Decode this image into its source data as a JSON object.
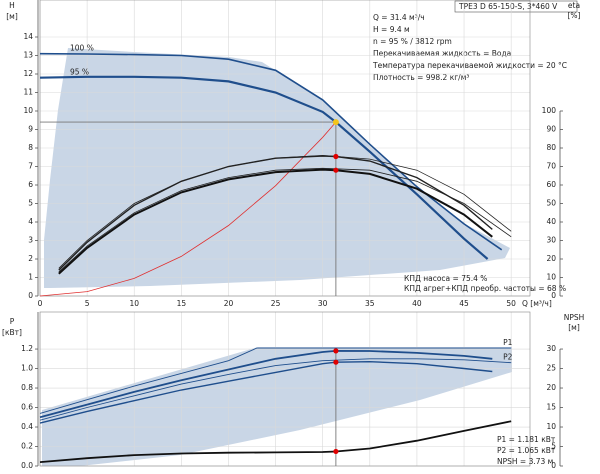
{
  "header": {
    "model": "TPE3 D 65-150-S, 3*460 V"
  },
  "info": [
    "Q = 31.4 м³/ч",
    "H = 9.4 м",
    "n = 95 % / 3812 rpm",
    "Перекачиваемая жидкость = Вода",
    "Температура перекачиваемой жидкости = 20 °C",
    "Плотность = 998.2 кг/м³"
  ],
  "chart_data": [
    {
      "type": "line",
      "x_label": "Q [м³/ч]",
      "y_label": "H",
      "y_unit": "[м]",
      "y2_label": "eta",
      "y2_unit": "[%]",
      "xlim": [
        0,
        52
      ],
      "xticks": [
        0,
        5,
        10,
        15,
        20,
        25,
        30,
        35,
        40,
        45,
        50
      ],
      "ylim": [
        0,
        16
      ],
      "yticks": [
        0,
        1,
        2,
        3,
        4,
        5,
        6,
        7,
        8,
        9,
        10,
        11,
        12,
        13,
        14
      ],
      "y2lim": [
        0,
        160
      ],
      "y2ticks": [
        0,
        10,
        20,
        30,
        40,
        50,
        60,
        70,
        80,
        90,
        100
      ],
      "grid": true,
      "operating_point": {
        "x": 31.4,
        "y": 9.4,
        "color": "#f5c518"
      },
      "notes": [
        "КПД насоса = 75.4 %",
        "КПД агрег+КПД преобр. частоты = 68 %"
      ],
      "series": [
        {
          "name": "100 %",
          "label_at": "start",
          "color": "#1f4e8c",
          "width": 1.6,
          "x": [
            0,
            5,
            10,
            15,
            20,
            25,
            30,
            35,
            40,
            45,
            49
          ],
          "values": [
            13.1,
            13.08,
            13.05,
            13.0,
            12.8,
            12.2,
            10.6,
            8.2,
            5.9,
            3.9,
            2.5
          ]
        },
        {
          "name": "95 %",
          "label_at": "start",
          "color": "#1f4e8c",
          "width": 2.2,
          "x": [
            0,
            5,
            10,
            15,
            20,
            25,
            30,
            31.4,
            35,
            40,
            45,
            47.5
          ],
          "values": [
            11.8,
            11.85,
            11.85,
            11.8,
            11.6,
            11.0,
            9.95,
            9.4,
            7.8,
            5.5,
            3.1,
            2.0
          ]
        },
        {
          "color": "#e03030",
          "width": 0.8,
          "x": [
            0,
            5,
            10,
            15,
            20,
            25,
            30,
            31.4
          ],
          "values": [
            0,
            0.24,
            0.95,
            2.14,
            3.81,
            5.96,
            8.58,
            9.4
          ]
        },
        {
          "color": "#222222",
          "width": 0.8,
          "axis": "y2",
          "x": [
            2,
            5,
            10,
            15,
            20,
            25,
            30,
            35,
            40,
            45,
            50
          ],
          "values": [
            15,
            30,
            50,
            62,
            70,
            74.5,
            76,
            74,
            68,
            55,
            35
          ]
        },
        {
          "color": "#222222",
          "width": 1.4,
          "axis": "y2",
          "marker_color": "#e00000",
          "x": [
            2,
            5,
            10,
            15,
            20,
            25,
            30,
            31.4,
            35,
            40,
            45,
            48
          ],
          "values": [
            14,
            29,
            49,
            62,
            70,
            74.5,
            75.7,
            75.4,
            73,
            64,
            49,
            36
          ]
        },
        {
          "color": "#222222",
          "width": 0.8,
          "axis": "y2",
          "x": [
            2,
            5,
            10,
            15,
            20,
            25,
            30,
            35,
            40,
            45,
            50
          ],
          "values": [
            13,
            27,
            45,
            57,
            64,
            68,
            69,
            68,
            62,
            50,
            32
          ]
        },
        {
          "color": "#111111",
          "width": 2,
          "axis": "y2",
          "marker_color": "#e00000",
          "x": [
            2,
            5,
            10,
            15,
            20,
            25,
            30,
            31.4,
            35,
            40,
            45,
            48
          ],
          "values": [
            12,
            26,
            44,
            56,
            63,
            67,
            68.3,
            68,
            66,
            58,
            44,
            32
          ]
        }
      ]
    },
    {
      "type": "line",
      "y_label": "P",
      "y_unit": "[кВт]",
      "y2_label": "NPSH",
      "y2_unit": "[м]",
      "xlim": [
        0,
        52
      ],
      "xticks": [
        0,
        5,
        10,
        15,
        20,
        25,
        30,
        35,
        40,
        45,
        50
      ],
      "ylim": [
        0,
        1.58
      ],
      "yticks": [
        {
          "value": 0,
          "label": "0.0"
        },
        0.2,
        0.4,
        0.6,
        0.8,
        {
          "value": 1,
          "label": "1.0"
        },
        1.2
      ],
      "y2lim": [
        0,
        39.5
      ],
      "y2ticks": [
        0,
        5,
        10,
        15,
        20,
        25,
        30
      ],
      "grid": true,
      "notes": [
        "P1 = 1.181 кВт",
        "P2 = 1.065 кВт",
        "NPSH = 3.73 м"
      ],
      "series": [
        {
          "name": "P1",
          "label_at": "end",
          "color": "#1f4e8c",
          "width": 0.9,
          "x": [
            0,
            5,
            10,
            15,
            20,
            23,
            30,
            40,
            50
          ],
          "values": [
            0.54,
            0.68,
            0.82,
            0.95,
            1.08,
            1.21,
            1.21,
            1.21,
            1.21
          ]
        },
        {
          "color": "#1f4e8c",
          "width": 1.8,
          "marker_color": "#e00000",
          "x": [
            0,
            5,
            10,
            15,
            20,
            25,
            30,
            31.4,
            35,
            40,
            45,
            48
          ],
          "values": [
            0.5,
            0.63,
            0.76,
            0.88,
            0.99,
            1.1,
            1.17,
            1.181,
            1.18,
            1.16,
            1.13,
            1.1
          ]
        },
        {
          "name": "P2",
          "label_at": "end",
          "color": "#1f4e8c",
          "width": 0.9,
          "x": [
            0,
            5,
            10,
            15,
            20,
            25,
            30,
            35,
            40,
            45,
            50
          ],
          "values": [
            0.47,
            0.6,
            0.72,
            0.84,
            0.94,
            1.03,
            1.08,
            1.1,
            1.1,
            1.09,
            1.06
          ]
        },
        {
          "color": "#1f4e8c",
          "width": 1.4,
          "marker_color": "#e00000",
          "x": [
            0,
            5,
            10,
            15,
            20,
            25,
            30,
            31.4,
            35,
            40,
            45,
            48
          ],
          "values": [
            0.44,
            0.56,
            0.67,
            0.78,
            0.87,
            0.96,
            1.05,
            1.065,
            1.07,
            1.05,
            1.0,
            0.97
          ]
        },
        {
          "color": "#111111",
          "width": 1.8,
          "axis": "y2",
          "marker_color": "#e00000",
          "x": [
            0,
            5,
            10,
            15,
            20,
            25,
            30,
            31.4,
            35,
            40,
            45,
            50
          ],
          "values": [
            1,
            2,
            2.8,
            3.2,
            3.4,
            3.5,
            3.6,
            3.73,
            4.5,
            6.5,
            9,
            11.5
          ]
        }
      ]
    }
  ]
}
